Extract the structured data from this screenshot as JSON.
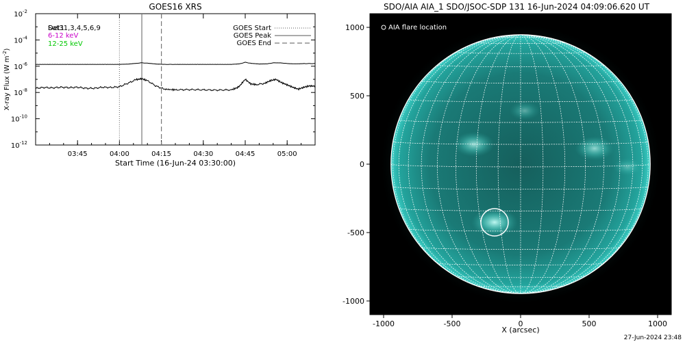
{
  "chart_data": [
    {
      "type": "line",
      "title": "GOES16 XRS",
      "xlabel": "Start Time (16-Jun-24 03:30:00)",
      "ylabel": "X-ray Flux (W m",
      "ylabel_sup": "-2",
      "ylabel_close": ")",
      "x_unit": "minutes since 03:30:00",
      "xlim": [
        0,
        100
      ],
      "ylim_log10": [
        -12,
        -2
      ],
      "y_scale": "log",
      "x_ticks": [
        {
          "x": 15,
          "label": "03:45"
        },
        {
          "x": 30,
          "label": "04:00"
        },
        {
          "x": 45,
          "label": "04:15"
        },
        {
          "x": 60,
          "label": "04:30"
        },
        {
          "x": 75,
          "label": "04:45"
        },
        {
          "x": 90,
          "label": "05:00"
        }
      ],
      "y_ticks": [
        {
          "exp": -2,
          "base": "10",
          "sup": "-2"
        },
        {
          "exp": -4,
          "base": "10",
          "sup": "-4"
        },
        {
          "exp": -6,
          "base": "10",
          "sup": "-6"
        },
        {
          "exp": -8,
          "base": "10",
          "sup": "-8"
        },
        {
          "exp": -10,
          "base": "10",
          "sup": "-10"
        },
        {
          "exp": -12,
          "base": "10",
          "sup": "-12"
        }
      ],
      "legend_placement": "top-left",
      "channel_legend": [
        {
          "text": "Det1",
          "color": "#000000"
        },
        {
          "text": "Sat31,3,4,5,6,9",
          "color": "#000000"
        },
        {
          "text": "6-12 keV",
          "color": "#c800c8"
        },
        {
          "text": "12-25 keV",
          "color": "#00c800"
        }
      ],
      "event_legend": [
        {
          "label": "GOES Start",
          "style": "dotted"
        },
        {
          "label": "GOES Peak",
          "style": "solid"
        },
        {
          "label": "GOES End",
          "style": "dashed"
        }
      ],
      "event_lines": [
        {
          "name": "start",
          "x": 30,
          "style": "dotted"
        },
        {
          "name": "peak",
          "x": 38,
          "style": "solid"
        },
        {
          "name": "end",
          "x": 45,
          "style": "dashed"
        }
      ],
      "series": [
        {
          "name": "long",
          "color": "#000000",
          "x": [
            0,
            5,
            10,
            15,
            20,
            25,
            30,
            33,
            36,
            38,
            40,
            43,
            46,
            50,
            55,
            60,
            65,
            70,
            73,
            75,
            77,
            80,
            83,
            85,
            88,
            90,
            93,
            96,
            100
          ],
          "log_y": [
            -5.86,
            -5.86,
            -5.86,
            -5.86,
            -5.86,
            -5.86,
            -5.86,
            -5.84,
            -5.78,
            -5.74,
            -5.77,
            -5.83,
            -5.86,
            -5.86,
            -5.86,
            -5.86,
            -5.86,
            -5.86,
            -5.82,
            -5.7,
            -5.78,
            -5.83,
            -5.82,
            -5.74,
            -5.75,
            -5.8,
            -5.82,
            -5.8,
            -5.8
          ]
        },
        {
          "name": "short",
          "color": "#000000",
          "x": [
            0,
            3,
            6,
            9,
            12,
            15,
            18,
            21,
            24,
            27,
            30,
            33,
            36,
            38,
            40,
            43,
            46,
            50,
            55,
            60,
            65,
            70,
            72,
            73,
            75,
            77,
            79,
            82,
            84,
            86,
            88,
            90,
            92,
            94,
            96,
            98,
            100
          ],
          "log_y": [
            -7.68,
            -7.62,
            -7.65,
            -7.6,
            -7.63,
            -7.6,
            -7.68,
            -7.68,
            -7.6,
            -7.62,
            -7.56,
            -7.3,
            -7.02,
            -6.95,
            -7.1,
            -7.5,
            -7.75,
            -7.8,
            -7.78,
            -7.8,
            -7.82,
            -7.8,
            -7.65,
            -7.5,
            -7.0,
            -7.35,
            -7.4,
            -7.3,
            -7.1,
            -7.0,
            -7.25,
            -7.42,
            -7.6,
            -7.75,
            -7.6,
            -7.5,
            -7.52
          ]
        }
      ]
    },
    {
      "type": "scatter",
      "title": "SDO/AIA AIA_1 SDO/JSOC-SDP 131 16-Jun-2024 04:09:06.620 UT",
      "xlabel": "X (arcsec)",
      "ylabel": "",
      "xlim": [
        -1100,
        1100
      ],
      "ylim": [
        -1100,
        1100
      ],
      "x_ticks": [
        -1000,
        -500,
        0,
        500,
        1000
      ],
      "y_ticks": [
        -1000,
        -500,
        0,
        500,
        1000
      ],
      "grid_spacing_deg": 10,
      "solar_radius_arcsec": 946,
      "disk_color": "#1a8c87",
      "legend": [
        {
          "symbol": "circle",
          "label": "AIA flare location"
        }
      ],
      "legend_placement": "top-left",
      "flare_location": {
        "x": -190,
        "y": -425,
        "radius_arcsec": 100
      },
      "bright_regions": [
        {
          "x": -340,
          "y": 145,
          "intensity": 0.8
        },
        {
          "x": 540,
          "y": 115,
          "intensity": 0.75
        },
        {
          "x": 780,
          "y": -20,
          "intensity": 0.4
        },
        {
          "x": -190,
          "y": -425,
          "intensity": 1.0
        },
        {
          "x": 30,
          "y": 390,
          "intensity": 0.45
        }
      ]
    }
  ],
  "footer": {
    "timestamp": "27-Jun-2024 23:48"
  }
}
